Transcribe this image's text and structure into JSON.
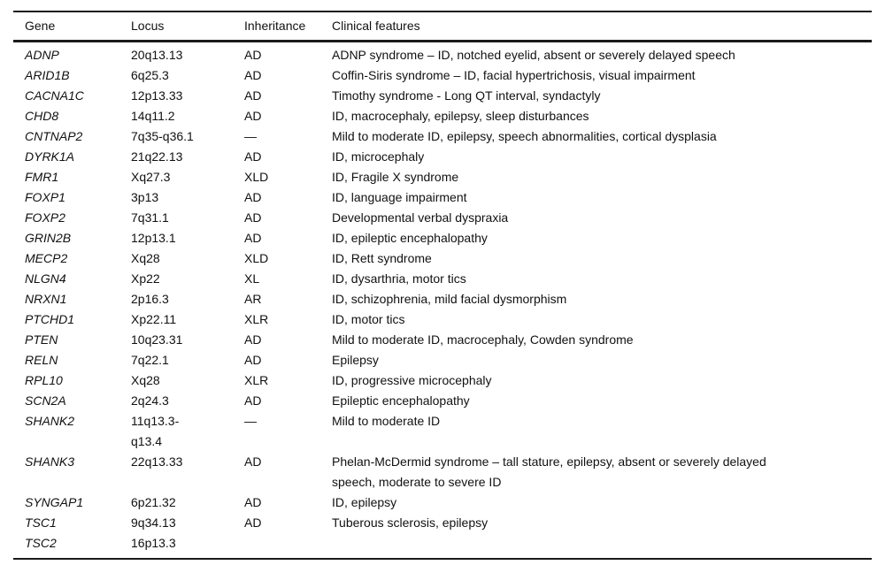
{
  "table": {
    "columns": [
      "Gene",
      "Locus",
      "Inheritance",
      "Clinical features"
    ],
    "rows": [
      {
        "gene": "ADNP",
        "locus": "20q13.13",
        "inheritance": "AD",
        "features": "ADNP syndrome – ID, notched eyelid, absent or severely delayed speech"
      },
      {
        "gene": "ARID1B",
        "locus": "6q25.3",
        "inheritance": "AD",
        "features": "Coffin-Siris syndrome – ID, facial hypertrichosis, visual impairment"
      },
      {
        "gene": "CACNA1C",
        "locus": "12p13.33",
        "inheritance": "AD",
        "features": "Timothy syndrome - Long QT interval, syndactyly"
      },
      {
        "gene": "CHD8",
        "locus": "14q11.2",
        "inheritance": "AD",
        "features": "ID, macrocephaly, epilepsy, sleep disturbances"
      },
      {
        "gene": "CNTNAP2",
        "locus": "7q35-q36.1",
        "inheritance": "—",
        "features": "Mild to moderate ID, epilepsy, speech abnormalities, cortical dysplasia"
      },
      {
        "gene": "DYRK1A",
        "locus": "21q22.13",
        "inheritance": "AD",
        "features": "ID, microcephaly"
      },
      {
        "gene": "FMR1",
        "locus": "Xq27.3",
        "inheritance": "XLD",
        "features": "ID, Fragile X syndrome"
      },
      {
        "gene": "FOXP1",
        "locus": "3p13",
        "inheritance": "AD",
        "features": "ID, language impairment"
      },
      {
        "gene": "FOXP2",
        "locus": "7q31.1",
        "inheritance": "AD",
        "features": "Developmental verbal dyspraxia"
      },
      {
        "gene": "GRIN2B",
        "locus": "12p13.1",
        "inheritance": "AD",
        "features": "ID, epileptic encephalopathy"
      },
      {
        "gene": "MECP2",
        "locus": "Xq28",
        "inheritance": "XLD",
        "features": "ID, Rett syndrome"
      },
      {
        "gene": "NLGN4",
        "locus": "Xp22",
        "inheritance": "XL",
        "features": "ID, dysarthria, motor tics"
      },
      {
        "gene": "NRXN1",
        "locus": "2p16.3",
        "inheritance": "AR",
        "features": "ID, schizophrenia, mild facial dysmorphism"
      },
      {
        "gene": "PTCHD1",
        "locus": "Xp22.11",
        "inheritance": "XLR",
        "features": "ID, motor tics"
      },
      {
        "gene": "PTEN",
        "locus": "10q23.31",
        "inheritance": "AD",
        "features": "Mild to moderate ID, macrocephaly, Cowden syndrome"
      },
      {
        "gene": "RELN",
        "locus": "7q22.1",
        "inheritance": "AD",
        "features": "Epilepsy"
      },
      {
        "gene": "RPL10",
        "locus": "Xq28",
        "inheritance": "XLR",
        "features": "ID, progressive microcephaly"
      },
      {
        "gene": "SCN2A",
        "locus": "2q24.3",
        "inheritance": "AD",
        "features": "Epileptic encephalopathy"
      },
      {
        "gene": "SHANK2",
        "locus": "11q13.3-\nq13.4",
        "inheritance": "—",
        "features": "Mild to moderate ID"
      },
      {
        "gene": "SHANK3",
        "locus": "22q13.33",
        "inheritance": "AD",
        "features": "Phelan-McDermid syndrome – tall stature, epilepsy, absent or severely delayed\nspeech, moderate to severe ID"
      },
      {
        "gene": "SYNGAP1",
        "locus": "6p21.32",
        "inheritance": "AD",
        "features": "ID, epilepsy"
      },
      {
        "gene": "TSC1",
        "locus": "9q34.13",
        "inheritance": "AD",
        "features": "Tuberous sclerosis, epilepsy"
      },
      {
        "gene": "TSC2",
        "locus": "16p13.3",
        "inheritance": "",
        "features": ""
      }
    ]
  }
}
